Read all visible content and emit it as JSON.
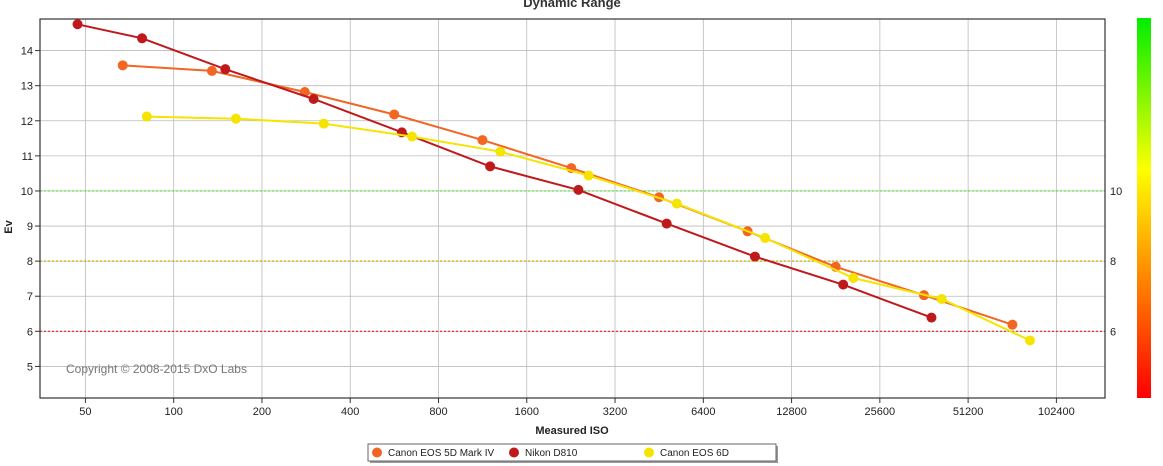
{
  "chart_data": {
    "type": "line",
    "title": "Dynamic Range",
    "xlabel": "Measured ISO",
    "ylabel": "Ev",
    "x_scale": "log2",
    "xlim": [
      35,
      150000
    ],
    "ylim": [
      4.1,
      14.9
    ],
    "x_ticks": [
      50,
      100,
      200,
      400,
      800,
      1600,
      3200,
      6400,
      12800,
      25600,
      51200,
      102400
    ],
    "x_tick_labels": [
      "50",
      "100",
      "200",
      "400",
      "800",
      "1600",
      "3200",
      "6400",
      "12800",
      "25600",
      "51200",
      "102400"
    ],
    "y_ticks": [
      5,
      6,
      7,
      8,
      9,
      10,
      11,
      12,
      13,
      14
    ],
    "y_tick_labels": [
      "5",
      "6",
      "7",
      "8",
      "9",
      "10",
      "11",
      "12",
      "13",
      "14"
    ],
    "grid": true,
    "reference_lines": [
      {
        "y": 10,
        "label": "10",
        "color": "#55dd33"
      },
      {
        "y": 8,
        "label": "8",
        "color": "#ccaa00"
      },
      {
        "y": 6,
        "label": "6",
        "color": "#dd2222"
      }
    ],
    "annotation": "Copyright © 2008-2015 DxO Labs",
    "legend_position": "bottom",
    "colorbar": {
      "position": "right",
      "colors": [
        "#00ee00",
        "#ffff00",
        "#ff0000"
      ]
    },
    "series": [
      {
        "name": "Canon EOS 5D Mark IV",
        "color": "#f26522",
        "x": [
          67,
          135,
          280,
          565,
          1130,
          2270,
          4520,
          9060,
          18100,
          36200,
          72500
        ],
        "y": [
          13.58,
          13.42,
          12.82,
          12.18,
          11.45,
          10.65,
          9.82,
          8.85,
          7.84,
          7.03,
          6.19
        ]
      },
      {
        "name": "Nikon D810",
        "color": "#c0191c",
        "x": [
          47,
          78,
          150,
          300,
          600,
          1200,
          2400,
          4800,
          9600,
          19200,
          38400
        ],
        "y": [
          14.75,
          14.35,
          13.47,
          12.62,
          11.67,
          10.7,
          10.03,
          9.07,
          8.13,
          7.33,
          6.39
        ]
      },
      {
        "name": "Canon EOS 6D",
        "color": "#f5e400",
        "x": [
          81,
          163,
          325,
          650,
          1300,
          2600,
          5200,
          10400,
          20800,
          41600,
          83200
        ],
        "y": [
          12.12,
          12.06,
          11.92,
          11.55,
          11.12,
          10.44,
          9.64,
          8.66,
          7.52,
          6.92,
          5.74
        ]
      }
    ]
  }
}
